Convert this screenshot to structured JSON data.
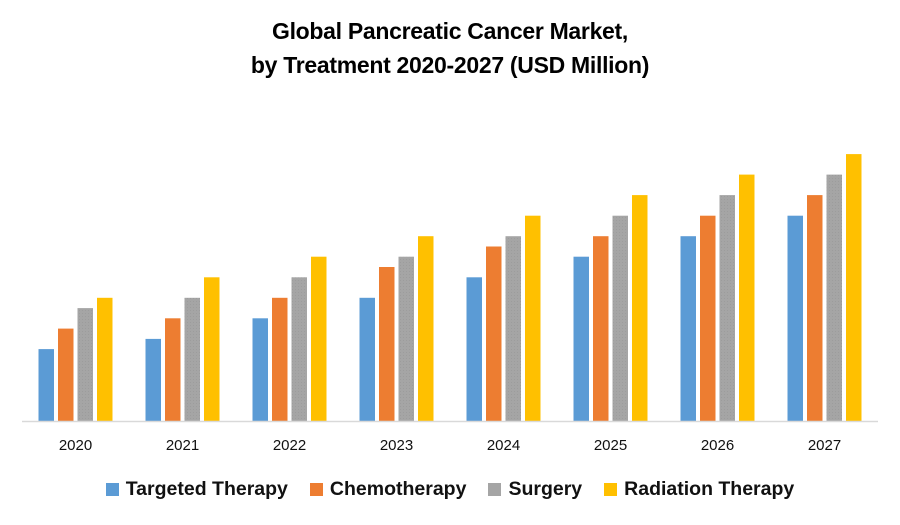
{
  "chart_data": {
    "type": "bar",
    "title": "Global Pancreatic Cancer Market, by Treatment 2020-2027 (USD Million)",
    "title_lines": [
      "Global Pancreatic Cancer Market,",
      "by Treatment 2020-2027 (USD Million)"
    ],
    "xlabel": "",
    "ylabel": "",
    "categories": [
      "2020",
      "2021",
      "2022",
      "2023",
      "2024",
      "2025",
      "2026",
      "2027"
    ],
    "series": [
      {
        "name": "Targeted Therapy",
        "color": "#5B9BD5",
        "values": [
          7,
          8,
          10,
          12,
          14,
          16,
          18,
          20
        ]
      },
      {
        "name": "Chemotherapy",
        "color": "#ED7D31",
        "values": [
          9,
          10,
          12,
          15,
          17,
          18,
          20,
          22
        ]
      },
      {
        "name": "Surgery",
        "color": "#A5A5A5",
        "values": [
          11,
          12,
          14,
          16,
          18,
          20,
          22,
          24
        ]
      },
      {
        "name": "Radiation Therapy",
        "color": "#FFC000",
        "values": [
          12,
          14,
          16,
          18,
          20,
          22,
          24,
          26
        ]
      }
    ],
    "ylim": [
      0,
      30
    ],
    "y_axis_visible": false,
    "grid": false,
    "legend_position": "bottom",
    "value_note": "No y-axis shown; values are relative estimates in arbitrary units read from bar heights"
  }
}
